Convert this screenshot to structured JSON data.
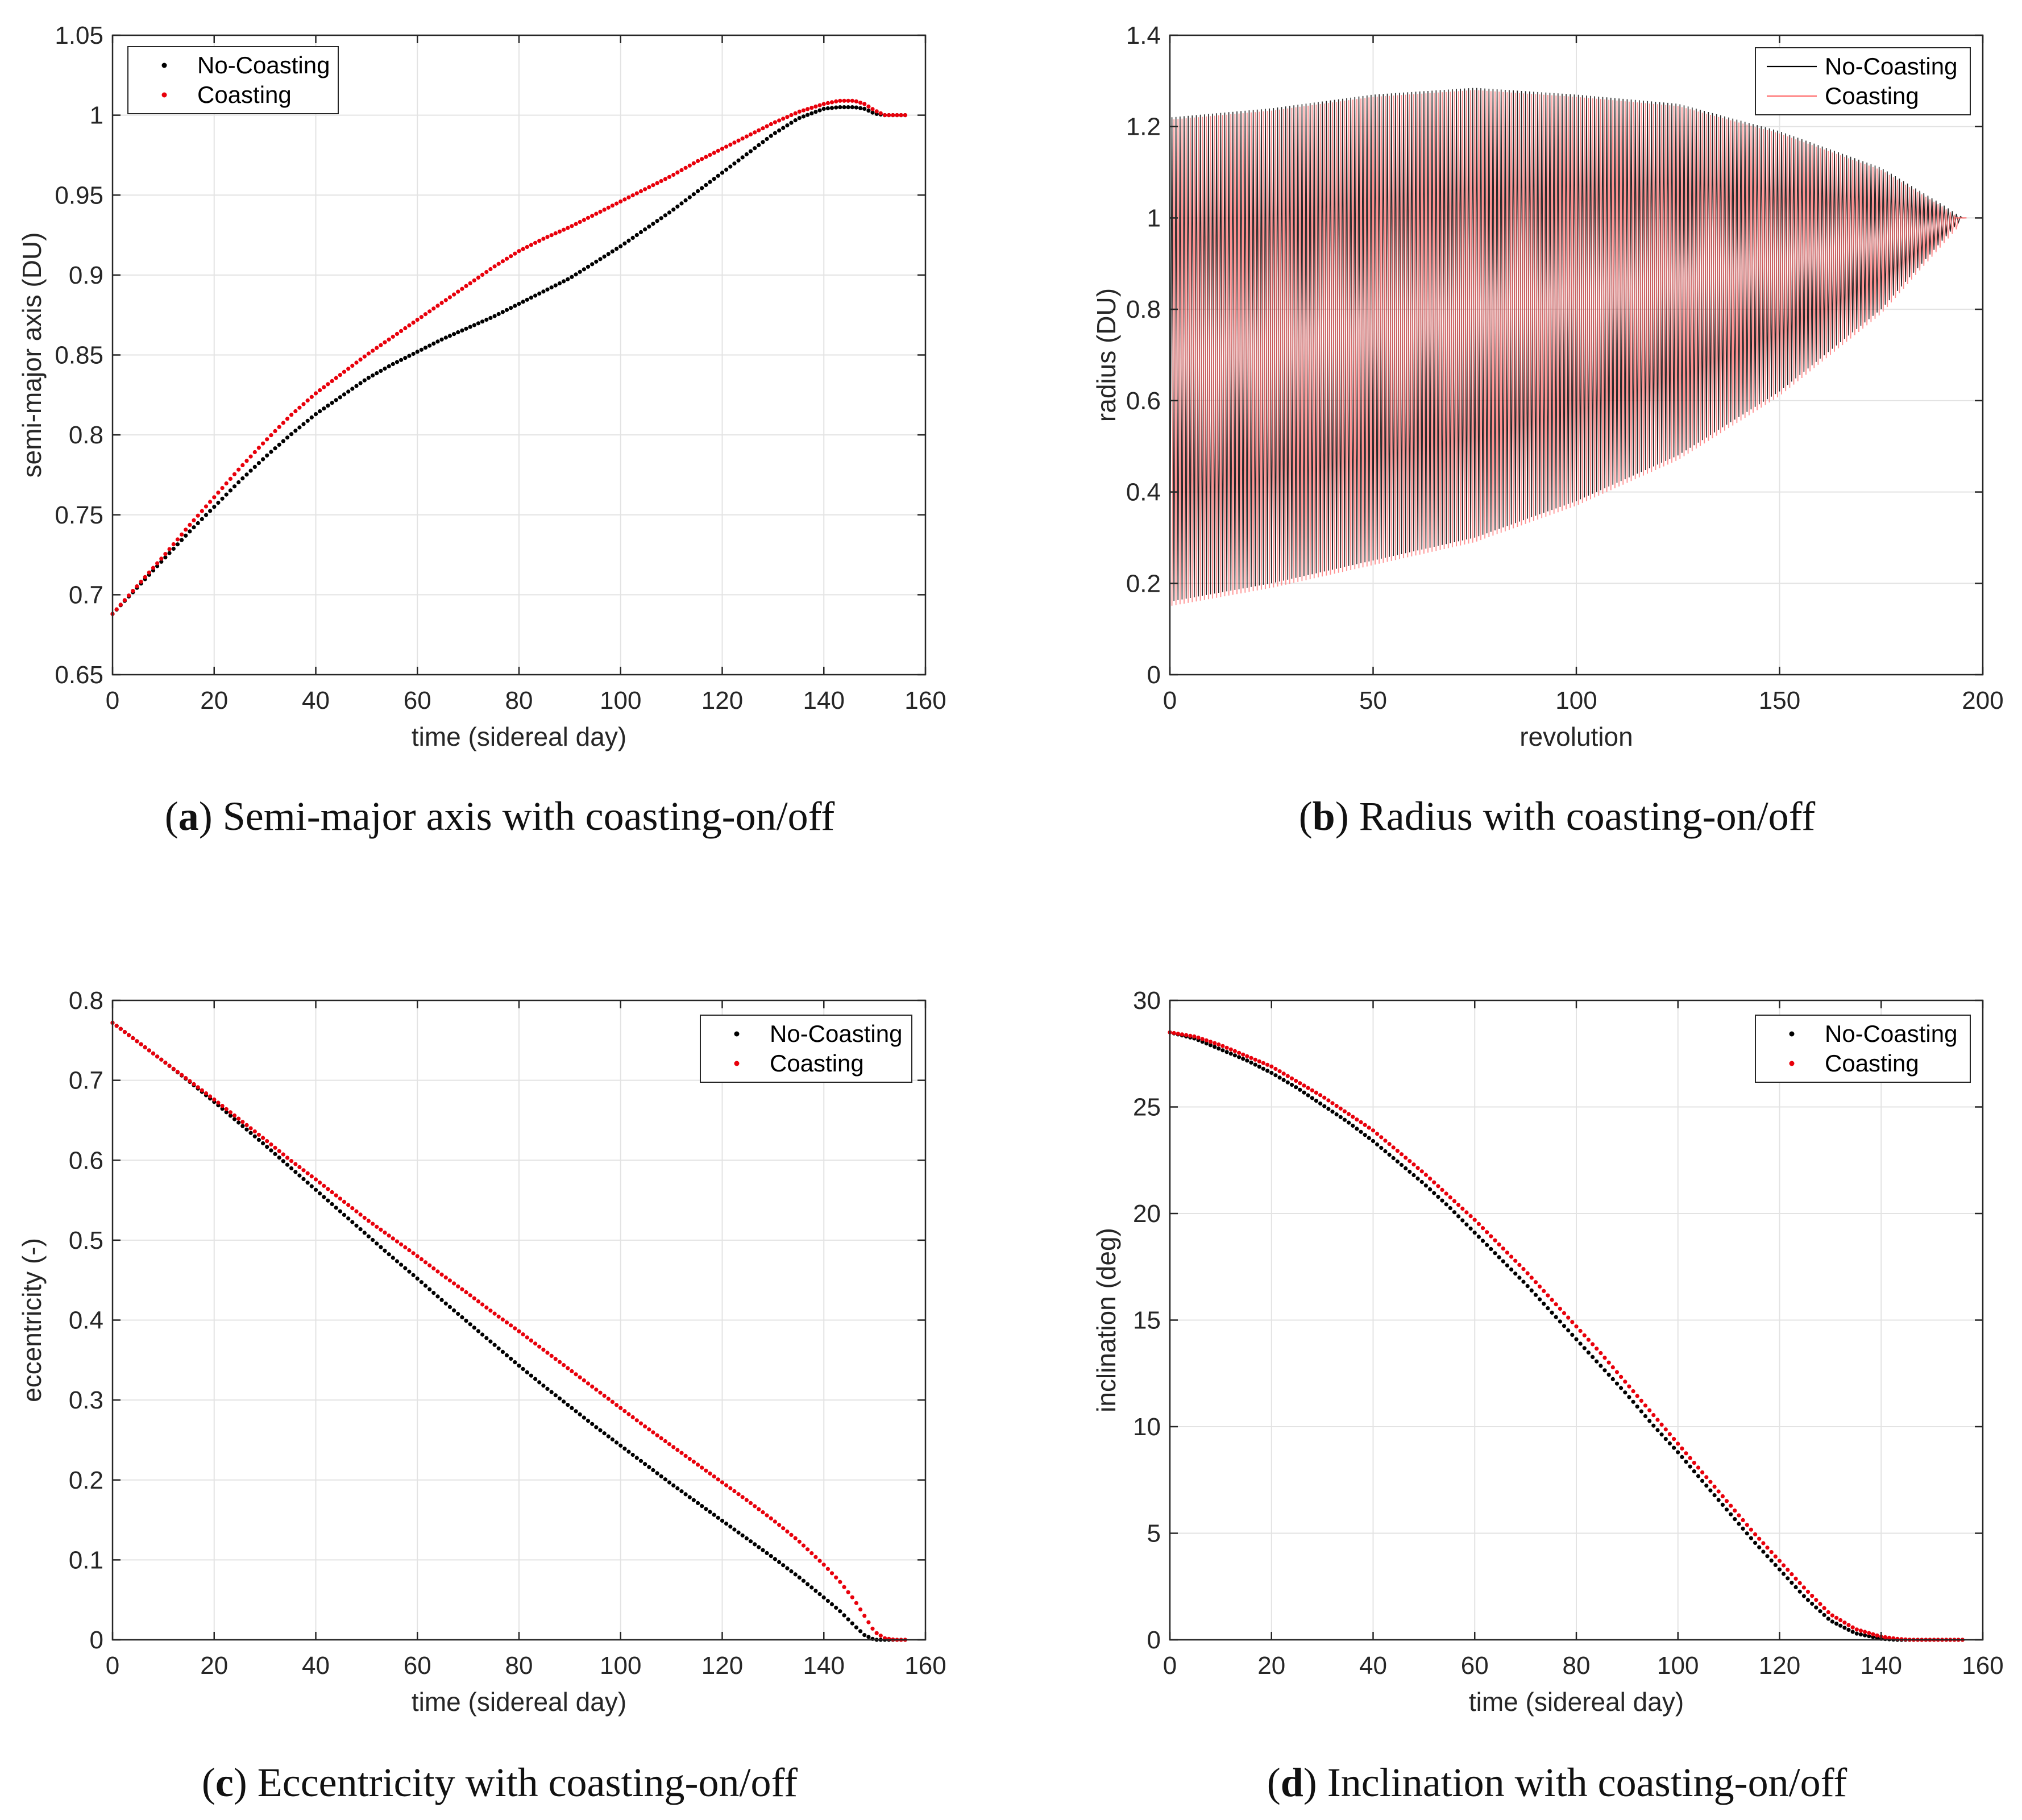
{
  "chart_data": [
    {
      "id": "a",
      "type": "scatter",
      "caption_label": "a",
      "caption_text": "Semi-major axis with coasting-on/off",
      "xlabel": "time (sidereal day)",
      "ylabel": "semi-major axis (DU)",
      "xlim": [
        0,
        160
      ],
      "ylim": [
        0.65,
        1.05
      ],
      "xticks": [
        0,
        20,
        40,
        60,
        80,
        100,
        120,
        140,
        160
      ],
      "yticks": [
        0.65,
        0.7,
        0.75,
        0.8,
        0.85,
        0.9,
        0.95,
        1,
        1.05
      ],
      "ytick_labels": [
        "0.65",
        "0.7",
        "0.75",
        "0.8",
        "0.85",
        "0.9",
        "0.95",
        "1",
        "1.05"
      ],
      "grid": true,
      "legend_position": "top-left",
      "series": [
        {
          "name": "No-Coasting",
          "color": "#000000",
          "x": [
            0,
            5,
            10,
            15,
            20,
            25,
            30,
            35,
            40,
            45,
            50,
            55,
            60,
            65,
            70,
            75,
            80,
            85,
            90,
            95,
            100,
            105,
            110,
            115,
            120,
            125,
            130,
            135,
            140,
            143,
            146,
            148,
            150,
            152,
            154,
            156
          ],
          "y": [
            0.688,
            0.705,
            0.722,
            0.739,
            0.755,
            0.771,
            0.786,
            0.8,
            0.813,
            0.824,
            0.835,
            0.844,
            0.852,
            0.86,
            0.867,
            0.874,
            0.882,
            0.89,
            0.898,
            0.908,
            0.918,
            0.929,
            0.94,
            0.952,
            0.964,
            0.976,
            0.988,
            0.998,
            1.004,
            1.005,
            1.005,
            1.004,
            1.001,
            1,
            1,
            1
          ]
        },
        {
          "name": "Coasting",
          "color": "#e8000b",
          "x": [
            0,
            5,
            10,
            15,
            20,
            25,
            30,
            35,
            40,
            45,
            50,
            55,
            60,
            65,
            70,
            75,
            80,
            85,
            90,
            95,
            100,
            105,
            110,
            115,
            120,
            125,
            130,
            135,
            140,
            143,
            146,
            148,
            150,
            152,
            154,
            156
          ],
          "y": [
            0.688,
            0.706,
            0.724,
            0.743,
            0.761,
            0.779,
            0.796,
            0.812,
            0.826,
            0.838,
            0.85,
            0.861,
            0.872,
            0.883,
            0.894,
            0.905,
            0.915,
            0.923,
            0.93,
            0.938,
            0.946,
            0.954,
            0.962,
            0.971,
            0.979,
            0.987,
            0.995,
            1.002,
            1.007,
            1.009,
            1.009,
            1.007,
            1.003,
            1,
            1,
            1
          ]
        }
      ]
    },
    {
      "id": "b",
      "type": "line",
      "caption_label": "b",
      "caption_text": "Radius with coasting-on/off",
      "xlabel": "revolution",
      "ylabel": "radius (DU)",
      "xlim": [
        0,
        200
      ],
      "ylim": [
        0,
        1.4
      ],
      "xticks": [
        0,
        50,
        100,
        150,
        200
      ],
      "yticks": [
        0,
        0.2,
        0.4,
        0.6,
        0.8,
        1,
        1.2,
        1.4
      ],
      "ytick_labels": [
        "0",
        "0.2",
        "0.4",
        "0.6",
        "0.8",
        "1",
        "1.2",
        "1.4"
      ],
      "grid": true,
      "legend_position": "top-right",
      "envelope": {
        "revolution": [
          0,
          25,
          50,
          75,
          100,
          125,
          150,
          175,
          190,
          195
        ],
        "apoapsis": [
          1.22,
          1.24,
          1.27,
          1.285,
          1.27,
          1.25,
          1.19,
          1.11,
          1.03,
          1.0
        ],
        "periapsis": [
          0.16,
          0.2,
          0.25,
          0.3,
          0.38,
          0.48,
          0.62,
          0.8,
          0.95,
          1.0
        ]
      },
      "series": [
        {
          "name": "No-Coasting",
          "color": "#000000",
          "revolutions": 195
        },
        {
          "name": "Coasting",
          "color": "#ff6b6b",
          "revolutions": 193
        }
      ]
    },
    {
      "id": "c",
      "type": "scatter",
      "caption_label": "c",
      "caption_text": "Eccentricity with coasting-on/off",
      "xlabel": "time (sidereal day)",
      "ylabel": "eccentricity (-)",
      "xlim": [
        0,
        160
      ],
      "ylim": [
        0,
        0.8
      ],
      "xticks": [
        0,
        20,
        40,
        60,
        80,
        100,
        120,
        140,
        160
      ],
      "yticks": [
        0,
        0.1,
        0.2,
        0.3,
        0.4,
        0.5,
        0.6,
        0.7,
        0.8
      ],
      "ytick_labels": [
        "0",
        "0.1",
        "0.2",
        "0.3",
        "0.4",
        "0.5",
        "0.6",
        "0.7",
        "0.8"
      ],
      "grid": true,
      "legend_position": "top-right",
      "series": [
        {
          "name": "No-Coasting",
          "color": "#000000",
          "x": [
            0,
            5,
            10,
            15,
            20,
            25,
            30,
            35,
            40,
            45,
            50,
            55,
            60,
            65,
            70,
            75,
            80,
            85,
            90,
            95,
            100,
            105,
            110,
            115,
            120,
            125,
            130,
            135,
            140,
            143,
            146,
            148,
            150,
            152,
            154,
            156
          ],
          "y": [
            0.772,
            0.748,
            0.724,
            0.699,
            0.673,
            0.646,
            0.619,
            0.591,
            0.563,
            0.535,
            0.507,
            0.479,
            0.452,
            0.424,
            0.397,
            0.37,
            0.343,
            0.317,
            0.292,
            0.267,
            0.243,
            0.219,
            0.195,
            0.172,
            0.149,
            0.126,
            0.103,
            0.079,
            0.053,
            0.037,
            0.018,
            0.006,
            0,
            0,
            0,
            0
          ]
        },
        {
          "name": "Coasting",
          "color": "#e8000b",
          "x": [
            0,
            5,
            10,
            15,
            20,
            25,
            30,
            35,
            40,
            45,
            50,
            55,
            60,
            65,
            70,
            75,
            80,
            85,
            90,
            95,
            100,
            105,
            110,
            115,
            120,
            125,
            130,
            135,
            140,
            143,
            146,
            148,
            150,
            152,
            154,
            156
          ],
          "y": [
            0.772,
            0.748,
            0.724,
            0.7,
            0.676,
            0.651,
            0.626,
            0.6,
            0.576,
            0.551,
            0.526,
            0.503,
            0.48,
            0.456,
            0.433,
            0.409,
            0.386,
            0.362,
            0.338,
            0.314,
            0.29,
            0.266,
            0.243,
            0.22,
            0.197,
            0.174,
            0.15,
            0.124,
            0.094,
            0.074,
            0.05,
            0.03,
            0.01,
            0.002,
            0,
            0
          ]
        }
      ]
    },
    {
      "id": "d",
      "type": "scatter",
      "caption_label": "d",
      "caption_text": "Inclination with coasting-on/off",
      "xlabel": "time (sidereal day)",
      "ylabel": "inclination (deg)",
      "xlim": [
        0,
        160
      ],
      "ylim": [
        0,
        30
      ],
      "xticks": [
        0,
        20,
        40,
        60,
        80,
        100,
        120,
        140,
        160
      ],
      "yticks": [
        0,
        5,
        10,
        15,
        20,
        25,
        30
      ],
      "ytick_labels": [
        "0",
        "5",
        "10",
        "15",
        "20",
        "25",
        "30"
      ],
      "grid": true,
      "legend_position": "top-right",
      "series": [
        {
          "name": "No-Coasting",
          "color": "#000000",
          "x": [
            0,
            5,
            10,
            15,
            20,
            25,
            30,
            35,
            40,
            45,
            50,
            55,
            60,
            65,
            70,
            75,
            80,
            85,
            90,
            95,
            100,
            105,
            110,
            115,
            120,
            125,
            130,
            135,
            140,
            143,
            146,
            148,
            150,
            152,
            154,
            156
          ],
          "y": [
            28.5,
            28.2,
            27.7,
            27.2,
            26.6,
            25.9,
            25.1,
            24.3,
            23.4,
            22.4,
            21.4,
            20.3,
            19.1,
            17.9,
            16.7,
            15.4,
            14.1,
            12.8,
            11.5,
            10.1,
            8.8,
            7.4,
            6.0,
            4.6,
            3.3,
            2.0,
            0.9,
            0.3,
            0.05,
            0,
            0,
            0,
            0,
            0,
            0,
            0
          ]
        },
        {
          "name": "Coasting",
          "color": "#e8000b",
          "x": [
            0,
            5,
            10,
            15,
            20,
            25,
            30,
            35,
            40,
            45,
            50,
            55,
            60,
            65,
            70,
            75,
            80,
            85,
            90,
            95,
            100,
            105,
            110,
            115,
            120,
            125,
            130,
            135,
            140,
            143,
            146,
            148,
            150,
            152,
            154,
            156
          ],
          "y": [
            28.5,
            28.3,
            27.9,
            27.4,
            26.9,
            26.2,
            25.5,
            24.7,
            23.9,
            22.9,
            21.9,
            20.8,
            19.7,
            18.5,
            17.3,
            16.0,
            14.7,
            13.4,
            12.0,
            10.6,
            9.2,
            7.8,
            6.4,
            5.0,
            3.7,
            2.4,
            1.2,
            0.5,
            0.15,
            0.05,
            0,
            0,
            0,
            0,
            0,
            0
          ]
        }
      ]
    }
  ]
}
